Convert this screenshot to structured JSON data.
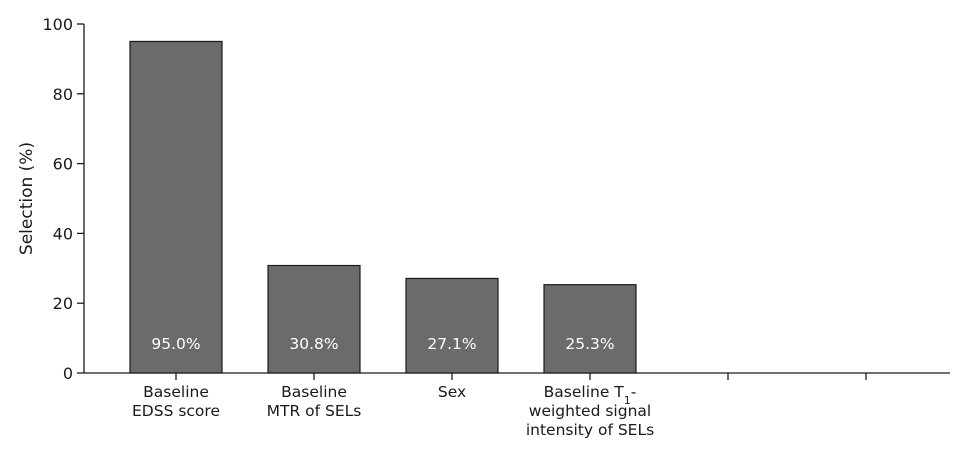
{
  "chart_data": {
    "type": "bar",
    "title": "",
    "xlabel": "",
    "ylabel": "Selection (%)",
    "ylim": [
      0,
      100
    ],
    "yticks": [
      0,
      20,
      40,
      60,
      80,
      100
    ],
    "grid": false,
    "bar_color": "#6b6b6b",
    "data_label_color": "#ffffff",
    "categories": [
      [
        "Baseline",
        "EDSS score"
      ],
      [
        "Baseline",
        "MTR of SELs"
      ],
      [
        "Sex"
      ],
      [
        "Baseline T",
        "weighted signal",
        "intensity of SELs"
      ],
      [
        ""
      ],
      [
        ""
      ]
    ],
    "category_subscripts": [
      null,
      null,
      null,
      {
        "line": 0,
        "sub": "1",
        "after": "-"
      },
      null,
      null
    ],
    "values": [
      95.0,
      30.8,
      27.1,
      25.3,
      null,
      null
    ],
    "data_labels": [
      "95.0%",
      "30.8%",
      "27.1%",
      "25.3%",
      "",
      ""
    ]
  }
}
